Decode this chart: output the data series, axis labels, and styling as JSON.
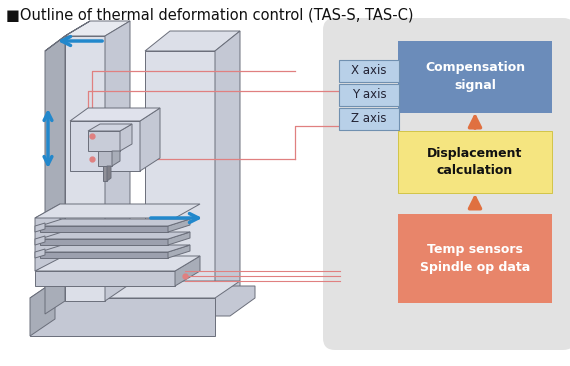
{
  "title": "■Outline of thermal deformation control (TAS-S, TAS-C)",
  "title_fontsize": 10.5,
  "bg_color": "#ffffff",
  "panel_bg": "#e2e2e2",
  "box_comp_color": "#6b8cba",
  "box_comp_text": "Compensation\nsignal",
  "box_disp_color": "#f5e580",
  "box_disp_text": "Displacement\ncalculation",
  "box_temp_color": "#e8856a",
  "box_temp_text": "Temp sensors\nSpindle op data",
  "axis_labels": [
    "X axis",
    "Y axis",
    "Z axis"
  ],
  "axis_box_color": "#b8d0e8",
  "axis_box_outline": "#7090b0",
  "arrow_color": "#e07040",
  "line_color": "#e08080",
  "blue_arrow_color": "#2288cc",
  "face_light": "#dcdfe8",
  "face_mid": "#c4c8d4",
  "face_dark": "#a8adb8",
  "edge_c": "#6a6e7a"
}
